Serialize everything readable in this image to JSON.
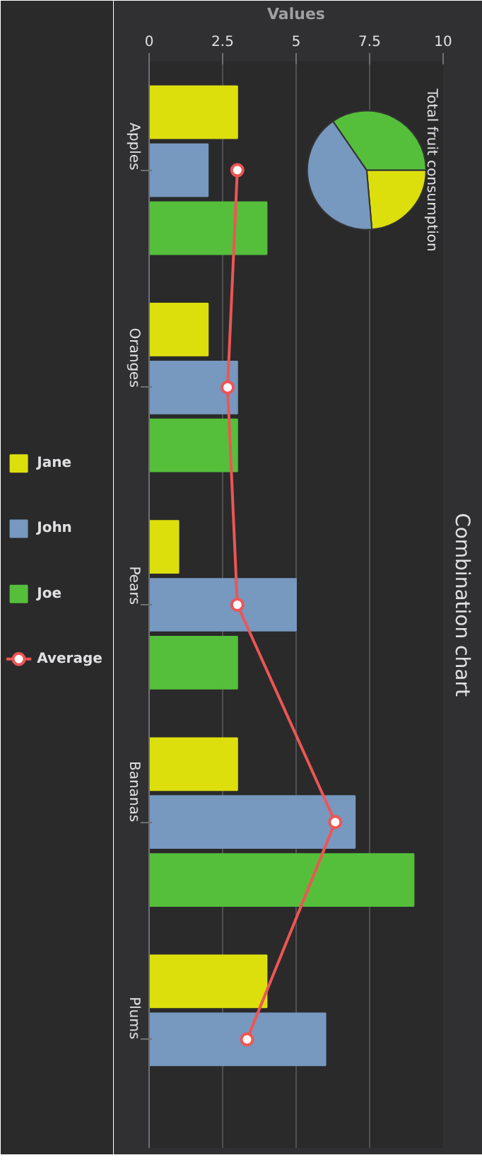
{
  "chart_data": [
    {
      "type": "bar",
      "title": "Combination chart",
      "categories": [
        "Apples",
        "Oranges",
        "Pears",
        "Bananas",
        "Plums"
      ],
      "grid": "x",
      "legend": "left",
      "orientation": "horizontal",
      "xlabel": "Values",
      "xlim": [
        0,
        10
      ],
      "xticks": [
        0,
        2.5,
        5,
        7.5,
        10
      ],
      "series": [
        {
          "name": "Jane",
          "color": "#dddf0d",
          "values": [
            3,
            2,
            1,
            3,
            4
          ]
        },
        {
          "name": "John",
          "color": "#7798bf",
          "values": [
            2,
            3,
            5,
            7,
            6
          ]
        },
        {
          "name": "Joe",
          "color": "#55bf3b",
          "values": [
            4,
            3,
            3,
            9,
            0
          ]
        },
        {
          "name": "Average",
          "type": "line",
          "color": "#ee5555",
          "marker": "circle",
          "values": [
            3,
            2.67,
            3,
            6.33,
            3.33
          ]
        }
      ],
      "annotations": [
        "Total fruit consumption"
      ]
    },
    {
      "type": "pie",
      "categories": [
        null,
        null,
        null
      ],
      "values": [
        23.6,
        41.8,
        34.6
      ],
      "colors": [
        "#dddf0d",
        "#7798bf",
        "#55bf3b"
      ]
    }
  ]
}
